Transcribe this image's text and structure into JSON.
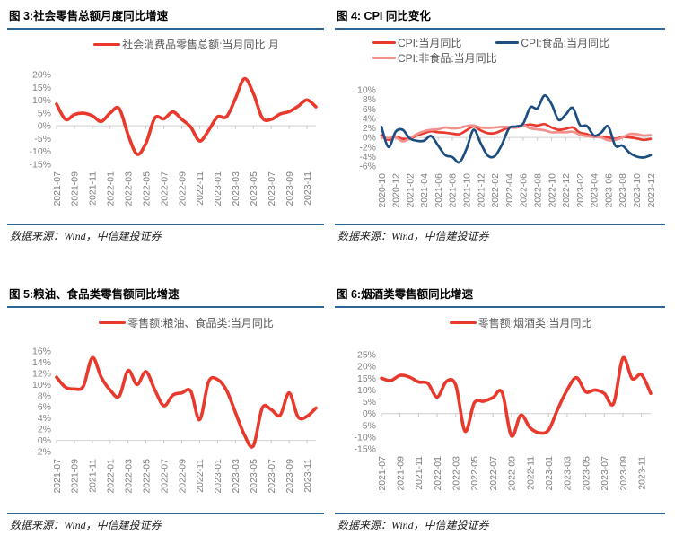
{
  "colors": {
    "red": "#e9392c",
    "navy": "#1c4e80",
    "pink": "#f2918c",
    "rule_blue": "#2d6596",
    "axis_text": "#7f7f7f",
    "legend_text": "#595959",
    "zero_line": "#d9d9d9",
    "tick": "#c6c6c6",
    "source_text": "#1a1a1a"
  },
  "panels": [
    {
      "title": "图 3:社会零售总额月度同比增速",
      "source": "数据来源：Wind，中信建投证券",
      "chart_data": {
        "type": "line",
        "x": [
          "2021-07",
          "2021-08",
          "2021-09",
          "2021-10",
          "2021-11",
          "2021-12",
          "2022-01",
          "2022-02",
          "2022-03",
          "2022-04",
          "2022-05",
          "2022-06",
          "2022-07",
          "2022-08",
          "2022-09",
          "2022-10",
          "2022-11",
          "2022-12",
          "2023-01",
          "2023-02",
          "2023-03",
          "2023-04",
          "2023-05",
          "2023-06",
          "2023-07",
          "2023-08",
          "2023-09",
          "2023-10",
          "2023-11",
          "2023-12"
        ],
        "series": [
          {
            "name": "社会消费品零售总额:当月同比 月",
            "color_key": "red",
            "values": [
              8.5,
              2.5,
              4.4,
              4.9,
              3.9,
              1.7,
              5.0,
              6.7,
              -3.5,
              -11.1,
              -6.7,
              3.1,
              2.7,
              5.4,
              2.5,
              -0.5,
              -5.9,
              -1.8,
              3.5,
              3.5,
              10.6,
              18.4,
              12.7,
              3.1,
              2.5,
              4.6,
              5.5,
              7.6,
              10.1,
              7.4
            ]
          }
        ],
        "ylim": [
          -15,
          20
        ],
        "ytick_step": 5,
        "ytick_suffix": "%",
        "xtick_every": 2,
        "grid": false,
        "legend_position": "top-center"
      }
    },
    {
      "title": "图 4: CPI 同比变化",
      "source": "数据来源：Wind，中信建投证券",
      "chart_data": {
        "type": "line",
        "x": [
          "2020-10",
          "2020-11",
          "2020-12",
          "2021-01",
          "2021-02",
          "2021-03",
          "2021-04",
          "2021-05",
          "2021-06",
          "2021-07",
          "2021-08",
          "2021-09",
          "2021-10",
          "2021-11",
          "2021-12",
          "2022-01",
          "2022-02",
          "2022-03",
          "2022-04",
          "2022-05",
          "2022-06",
          "2022-07",
          "2022-08",
          "2022-09",
          "2022-10",
          "2022-11",
          "2022-12",
          "2023-01",
          "2023-02",
          "2023-03",
          "2023-04",
          "2023-05",
          "2023-06",
          "2023-07",
          "2023-08",
          "2023-09",
          "2023-10",
          "2023-11",
          "2023-12"
        ],
        "series": [
          {
            "name": "CPI:当月同比",
            "color_key": "red",
            "values": [
              0.5,
              -0.5,
              0.2,
              -0.3,
              -0.2,
              0.4,
              0.9,
              1.3,
              1.1,
              1.0,
              0.8,
              0.7,
              1.5,
              2.3,
              1.5,
              0.9,
              0.9,
              1.5,
              2.1,
              2.1,
              2.5,
              2.7,
              2.5,
              2.8,
              2.1,
              1.6,
              1.8,
              2.1,
              1.0,
              0.7,
              0.1,
              0.2,
              0.0,
              -0.3,
              0.1,
              0.0,
              -0.2,
              -0.5,
              -0.3
            ]
          },
          {
            "name": "CPI:食品:当月同比",
            "color_key": "navy",
            "values": [
              2.2,
              -2.0,
              1.2,
              1.6,
              -0.2,
              -0.7,
              -0.7,
              0.3,
              -1.7,
              -3.7,
              -4.1,
              -5.2,
              -2.4,
              1.6,
              -1.2,
              -3.8,
              -3.9,
              -1.5,
              1.9,
              2.3,
              2.9,
              6.3,
              6.1,
              8.8,
              7.0,
              3.7,
              4.8,
              6.2,
              2.6,
              2.4,
              0.4,
              1.0,
              2.3,
              -1.7,
              -1.7,
              -3.2,
              -4.0,
              -4.2,
              -3.7
            ]
          },
          {
            "name": "CPI:非食品:当月同比",
            "color_key": "pink",
            "values": [
              0.0,
              -0.1,
              0.0,
              -0.8,
              -0.2,
              0.7,
              1.3,
              1.6,
              1.7,
              2.1,
              1.9,
              2.0,
              2.4,
              2.5,
              2.1,
              2.0,
              2.1,
              2.2,
              2.2,
              2.1,
              2.5,
              1.9,
              1.7,
              1.5,
              1.1,
              1.1,
              1.1,
              1.2,
              0.6,
              0.3,
              0.1,
              0.0,
              -0.6,
              -0.5,
              0.0,
              0.7,
              0.7,
              0.4,
              0.5
            ]
          }
        ],
        "ylim": [
          -6,
          10
        ],
        "ytick_step": 2,
        "ytick_suffix": "%",
        "xtick_every": 2,
        "grid": false,
        "legend_position": "top-left-two-rows"
      }
    },
    {
      "title": "图 5:粮油、食品类零售额同比增速",
      "source": "数据来源：Wind，中信建投证券",
      "chart_data": {
        "type": "line",
        "x": [
          "2021-07",
          "2021-08",
          "2021-09",
          "2021-10",
          "2021-11",
          "2021-12",
          "2022-01",
          "2022-02",
          "2022-03",
          "2022-04",
          "2022-05",
          "2022-06",
          "2022-07",
          "2022-08",
          "2022-09",
          "2022-10",
          "2022-11",
          "2022-12",
          "2023-01",
          "2023-02",
          "2023-03",
          "2023-04",
          "2023-05",
          "2023-06",
          "2023-07",
          "2023-08",
          "2023-09",
          "2023-10",
          "2023-11",
          "2023-12"
        ],
        "series": [
          {
            "name": "零售额:粮油、食品类:当月同比",
            "color_key": "red",
            "values": [
              11.3,
              9.5,
              9.2,
              9.7,
              14.8,
              11.3,
              9.0,
              7.9,
              12.5,
              10.0,
              12.3,
              9.0,
              6.2,
              8.1,
              8.5,
              8.8,
              3.7,
              10.5,
              10.9,
              9.0,
              5.0,
              1.0,
              -1.0,
              5.8,
              5.5,
              4.5,
              8.5,
              4.2,
              4.3,
              5.8
            ]
          }
        ],
        "ylim": [
          -2,
          16
        ],
        "ytick_step": 2,
        "ytick_suffix": "%",
        "xtick_every": 2,
        "grid": false,
        "legend_position": "top-center"
      }
    },
    {
      "title": "图 6:烟酒类零售额同比增速",
      "source": "数据来源：Wind，中信建投证券",
      "chart_data": {
        "type": "line",
        "x": [
          "2021-07",
          "2021-08",
          "2021-09",
          "2021-10",
          "2021-11",
          "2021-12",
          "2022-01",
          "2022-02",
          "2022-03",
          "2022-04",
          "2022-05",
          "2022-06",
          "2022-07",
          "2022-08",
          "2022-09",
          "2022-10",
          "2022-11",
          "2022-12",
          "2023-01",
          "2023-02",
          "2023-03",
          "2023-04",
          "2023-05",
          "2023-06",
          "2023-07",
          "2023-08",
          "2023-09",
          "2023-10",
          "2023-11",
          "2023-12"
        ],
        "series": [
          {
            "name": "零售额:烟酒类:当月同比",
            "color_key": "red",
            "values": [
              15.0,
              14.0,
              16.2,
              15.5,
              13.4,
              12.8,
              7.0,
              13.6,
              12.0,
              -7.5,
              4.5,
              5.2,
              6.7,
              8.9,
              -9.5,
              -0.7,
              -6.0,
              -8.2,
              -7.0,
              2.0,
              10.0,
              15.2,
              9.2,
              10.0,
              8.5,
              4.2,
              23.5,
              14.8,
              16.5,
              8.5
            ]
          }
        ],
        "ylim": [
          -15,
          25
        ],
        "ytick_step": 5,
        "ytick_suffix": "%",
        "xtick_every": 2,
        "grid": false,
        "legend_position": "top-center"
      }
    }
  ]
}
